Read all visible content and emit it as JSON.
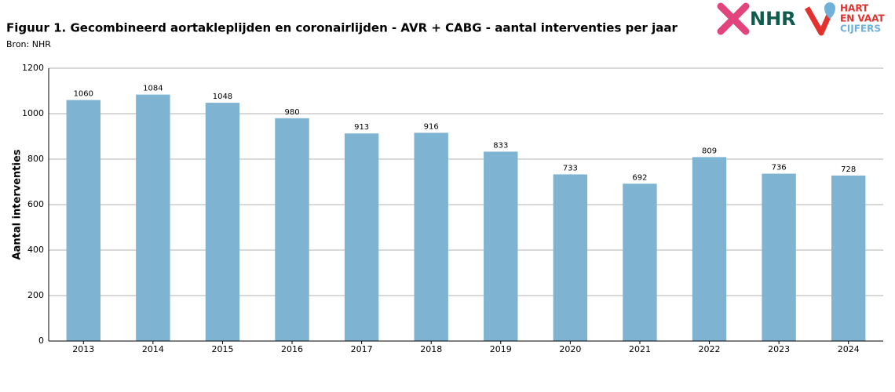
{
  "chart_data": {
    "type": "bar",
    "title": "Figuur 1. Gecombineerd aortakleplijden en coronairlijden - AVR + CABG - aantal interventies per jaar",
    "subtitle": "Bron: NHR",
    "y_label": "Aantal interventies",
    "categories": [
      "2013",
      "2014",
      "2015",
      "2016",
      "2017",
      "2018",
      "2019",
      "2020",
      "2021",
      "2022",
      "2023",
      "2024"
    ],
    "values": [
      1060,
      1084,
      1048,
      980,
      913,
      916,
      833,
      733,
      692,
      809,
      736,
      728
    ],
    "color": "#7eb4d2",
    "ylim": [
      0,
      1200
    ],
    "yticks": [
      0,
      200,
      400,
      600,
      800,
      1000,
      1200
    ],
    "grid": true
  },
  "header": {
    "logos": [
      "NHR",
      "HART",
      "EN VAAT",
      "CIJFERS"
    ]
  }
}
